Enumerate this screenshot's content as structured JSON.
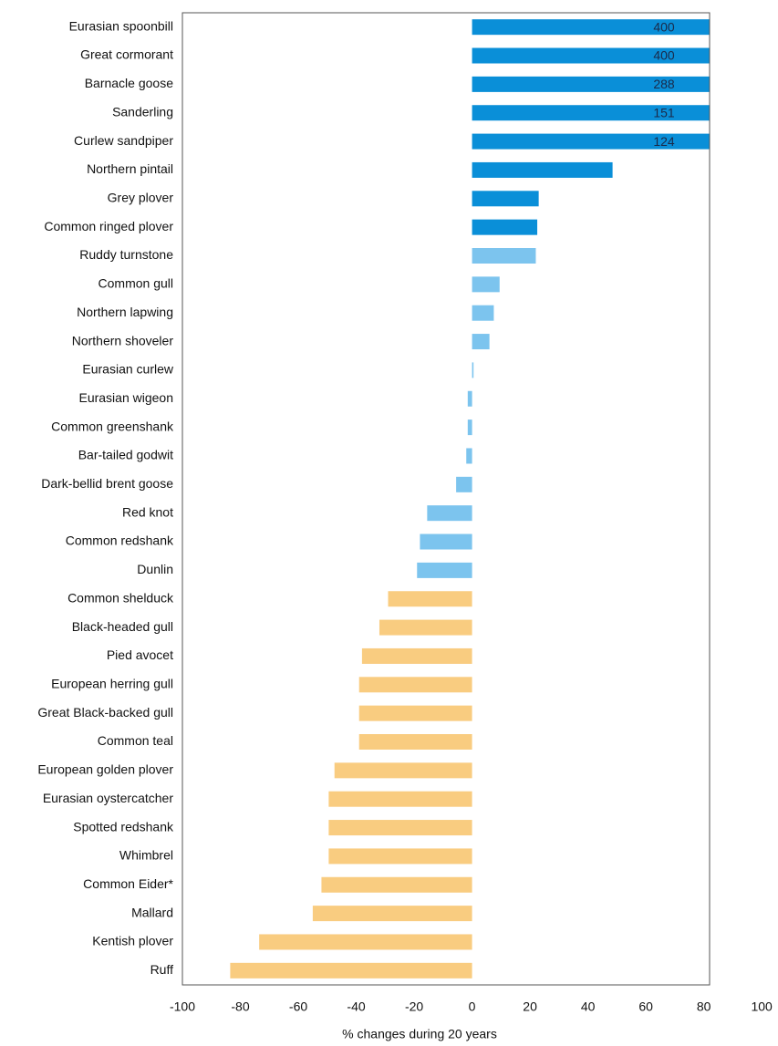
{
  "chart_data": {
    "type": "barh",
    "categories": [
      "Eurasian spoonbill",
      "Great cormorant",
      "Barnacle goose",
      "Sanderling",
      "Curlew sandpiper",
      "Northern pintail",
      "Grey plover",
      "Common ringed plover",
      "Ruddy turnstone",
      "Common gull",
      "Northern lapwing",
      "Northern shoveler",
      "Eurasian curlew",
      "Eurasian wigeon",
      "Common greenshank",
      "Bar-tailed godwit",
      "Dark-bellid brent goose",
      "Red knot",
      "Common redshank",
      "Dunlin",
      "Common shelduck",
      "Black-headed gull",
      "Pied avocet",
      "European herring gull",
      "Great Black-backed gull",
      "Common teal",
      "European golden plover",
      "Eurasian oystercatcher",
      "Spotted redshank",
      "Whimbrel",
      "Common Eider*",
      "Mallard",
      "Kentish plover",
      "Ruff"
    ],
    "values": [
      400,
      400,
      288,
      151,
      124,
      48.5,
      23,
      22.5,
      22,
      9.5,
      7.5,
      6,
      0.5,
      -1.5,
      -1.5,
      -2,
      -5.5,
      -15.5,
      -18,
      -19,
      -29,
      -32,
      -38,
      -39,
      -39,
      -39,
      -47.5,
      -49.5,
      -49.5,
      -49.5,
      -52,
      -55,
      -73.5,
      -83.5
    ],
    "value_labels": [
      "400",
      "400",
      "288",
      "151",
      "124",
      null,
      null,
      null,
      null,
      null,
      null,
      null,
      null,
      null,
      null,
      null,
      null,
      null,
      null,
      null,
      null,
      null,
      null,
      null,
      null,
      null,
      null,
      null,
      null,
      null,
      null,
      null,
      null,
      null
    ],
    "colors": [
      "#0a8fd8",
      "#0a8fd8",
      "#0a8fd8",
      "#0a8fd8",
      "#0a8fd8",
      "#0a8fd8",
      "#0a8fd8",
      "#0a8fd8",
      "#7cc4ee",
      "#7cc4ee",
      "#7cc4ee",
      "#7cc4ee",
      "#7cc4ee",
      "#7cc4ee",
      "#7cc4ee",
      "#7cc4ee",
      "#7cc4ee",
      "#7cc4ee",
      "#7cc4ee",
      "#7cc4ee",
      "#f9cc80",
      "#f9cc80",
      "#f9cc80",
      "#f9cc80",
      "#f9cc80",
      "#f9cc80",
      "#f9cc80",
      "#f9cc80",
      "#f9cc80",
      "#f9cc80",
      "#f9cc80",
      "#f9cc80",
      "#f9cc80",
      "#f9cc80"
    ],
    "xlabel": "% changes during 20 years",
    "xlim": [
      -100,
      82
    ],
    "xticks": [
      -100,
      -80,
      -60,
      -40,
      -20,
      0,
      20,
      40,
      60,
      80,
      100
    ]
  }
}
